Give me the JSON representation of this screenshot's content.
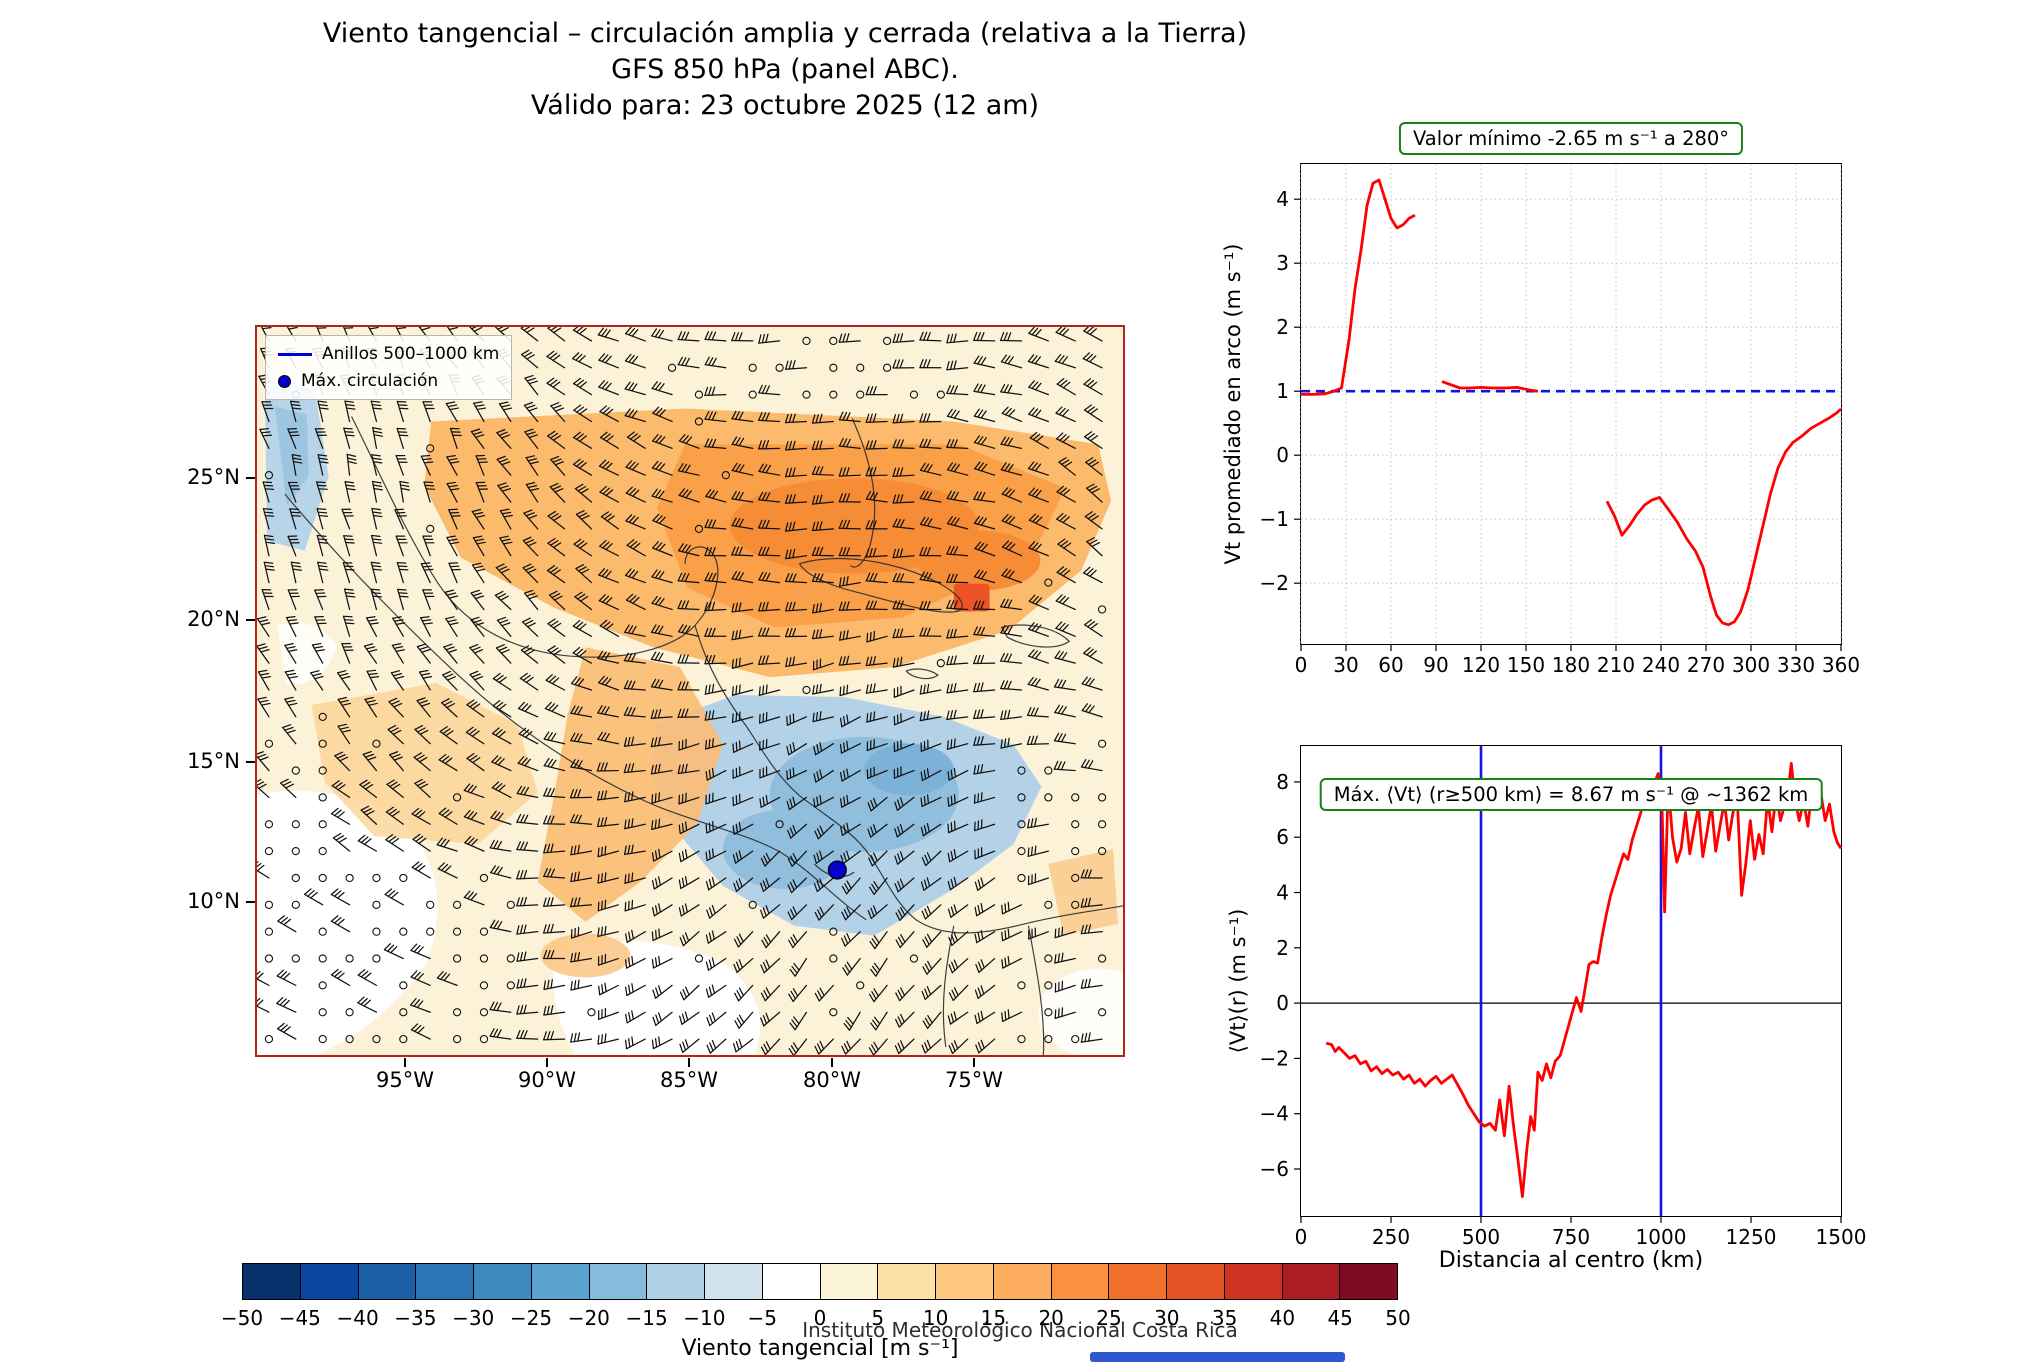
{
  "title": {
    "line1": "Viento tangencial – circulación amplia y cerrada (relativa a la Tierra)",
    "line2": "GFS 850 hPa (panel ABC).",
    "line3": "Válido para: 23 octubre 2025 (12 am)"
  },
  "footer": "Instituto Meteorológico Nacional Costa Rica",
  "map": {
    "legend": {
      "rings": "Anillos 500–1000 km",
      "max": "Máx. circulación"
    },
    "lat_ticks": [
      "25°N",
      "20°N",
      "15°N",
      "10°N"
    ],
    "lon_ticks": [
      "95°W",
      "90°W",
      "85°W",
      "80°W",
      "75°W"
    ],
    "border_color": "#b1251d",
    "max_marker_color": "#0202c8"
  },
  "colorbar": {
    "label": "Viento tangencial [m s⁻¹]",
    "ticks": [
      -50,
      -45,
      -40,
      -35,
      -30,
      -25,
      -20,
      -15,
      -10,
      -5,
      0,
      5,
      10,
      15,
      20,
      25,
      30,
      35,
      40,
      45,
      50
    ],
    "colors": [
      "#08306b",
      "#08479d",
      "#1a5fa8",
      "#2b74b6",
      "#3d8ac0",
      "#5ba3cf",
      "#85bcdb",
      "#aed1e7",
      "#d3e4f1",
      "#ffffff",
      "#fdf5d8",
      "#fddfa8",
      "#fdc780",
      "#fdad5e",
      "#fb903f",
      "#f2702b",
      "#e35222",
      "#cf3422",
      "#ad1c23",
      "#7f0c24"
    ]
  },
  "chart_data": [
    {
      "type": "line",
      "title": "Valor mínimo -2.65 m s⁻¹ a 280°",
      "ylabel": "Vt promediado en arco (m s⁻¹)",
      "xlabel": "",
      "xlim": [
        0,
        360
      ],
      "ylim": [
        -2.95,
        4.55
      ],
      "xticks": [
        0,
        30,
        60,
        90,
        120,
        150,
        180,
        210,
        240,
        270,
        300,
        330,
        360
      ],
      "yticks": [
        -2,
        -1,
        0,
        1,
        2,
        3,
        4
      ],
      "grid": true,
      "refline": 1.0,
      "refline_color": "#1414e0",
      "series": [
        {
          "name": "Vt promediado en arco",
          "color": "#ff0000",
          "segments": [
            [
              [
                0,
                0.95
              ],
              [
                8,
                0.95
              ],
              [
                16,
                0.96
              ],
              [
                22,
                1.0
              ],
              [
                27,
                1.05
              ],
              [
                32,
                1.8
              ],
              [
                36,
                2.6
              ],
              [
                40,
                3.2
              ],
              [
                44,
                3.9
              ],
              [
                48,
                4.25
              ],
              [
                52,
                4.3
              ],
              [
                56,
                4.0
              ],
              [
                60,
                3.7
              ],
              [
                64,
                3.55
              ],
              [
                68,
                3.6
              ],
              [
                72,
                3.7
              ],
              [
                76,
                3.75
              ]
            ],
            [
              [
                94,
                1.15
              ],
              [
                100,
                1.1
              ],
              [
                106,
                1.05
              ],
              [
                112,
                1.05
              ],
              [
                120,
                1.06
              ],
              [
                128,
                1.05
              ],
              [
                136,
                1.05
              ],
              [
                144,
                1.06
              ],
              [
                152,
                1.02
              ],
              [
                158,
                1.0
              ]
            ],
            [
              [
                204,
                -0.72
              ],
              [
                209,
                -0.95
              ],
              [
                214,
                -1.25
              ],
              [
                219,
                -1.1
              ],
              [
                224,
                -0.92
              ],
              [
                229,
                -0.78
              ],
              [
                234,
                -0.7
              ],
              [
                239,
                -0.66
              ],
              [
                245,
                -0.85
              ],
              [
                251,
                -1.05
              ],
              [
                257,
                -1.3
              ],
              [
                263,
                -1.5
              ],
              [
                268,
                -1.75
              ],
              [
                273,
                -2.2
              ],
              [
                277,
                -2.5
              ],
              [
                281,
                -2.62
              ],
              [
                285,
                -2.65
              ],
              [
                289,
                -2.6
              ],
              [
                293,
                -2.45
              ],
              [
                298,
                -2.1
              ],
              [
                303,
                -1.6
              ],
              [
                308,
                -1.1
              ],
              [
                313,
                -0.6
              ],
              [
                318,
                -0.2
              ],
              [
                323,
                0.05
              ],
              [
                328,
                0.2
              ],
              [
                334,
                0.3
              ],
              [
                340,
                0.42
              ],
              [
                346,
                0.5
              ],
              [
                352,
                0.58
              ],
              [
                357,
                0.66
              ],
              [
                360,
                0.72
              ]
            ]
          ]
        }
      ]
    },
    {
      "type": "line",
      "title": "Máx. ⟨Vt⟩ (r≥500 km) = 8.67 m s⁻¹ @ ~1362 km",
      "ylabel": "⟨Vt⟩(r) (m s⁻¹)",
      "xlabel": "Distancia al centro (km)",
      "xlim": [
        0,
        1500
      ],
      "ylim": [
        -7.7,
        9.3
      ],
      "xticks": [
        0,
        250,
        500,
        750,
        1000,
        1250,
        1500
      ],
      "yticks": [
        -6,
        -4,
        -2,
        0,
        2,
        4,
        6,
        8
      ],
      "grid": false,
      "hline": 0,
      "vlines": [
        500,
        1000
      ],
      "vline_color": "#1414e0",
      "max_value": 8.67,
      "max_at_km": 1362,
      "series": [
        {
          "name": "⟨Vt⟩(r)",
          "color": "#ff0000",
          "segments": [
            [
              [
                70,
                -1.45
              ],
              [
                85,
                -1.5
              ],
              [
                95,
                -1.75
              ],
              [
                105,
                -1.6
              ],
              [
                120,
                -1.8
              ],
              [
                135,
                -2.0
              ],
              [
                150,
                -1.9
              ],
              [
                165,
                -2.2
              ],
              [
                180,
                -2.1
              ],
              [
                195,
                -2.45
              ],
              [
                210,
                -2.3
              ],
              [
                225,
                -2.55
              ],
              [
                240,
                -2.4
              ],
              [
                255,
                -2.6
              ],
              [
                270,
                -2.5
              ],
              [
                285,
                -2.75
              ],
              [
                300,
                -2.6
              ],
              [
                315,
                -2.9
              ],
              [
                330,
                -2.75
              ],
              [
                345,
                -3.0
              ],
              [
                360,
                -2.8
              ],
              [
                375,
                -2.65
              ],
              [
                390,
                -2.9
              ],
              [
                405,
                -2.75
              ],
              [
                420,
                -2.6
              ],
              [
                435,
                -2.95
              ],
              [
                450,
                -3.3
              ],
              [
                465,
                -3.7
              ],
              [
                480,
                -4.0
              ],
              [
                495,
                -4.3
              ],
              [
                510,
                -4.45
              ],
              [
                525,
                -4.35
              ],
              [
                540,
                -4.6
              ],
              [
                552,
                -3.5
              ],
              [
                565,
                -4.8
              ],
              [
                578,
                -3.0
              ],
              [
                590,
                -4.4
              ],
              [
                602,
                -5.6
              ],
              [
                615,
                -7.0
              ],
              [
                628,
                -5.2
              ],
              [
                638,
                -4.1
              ],
              [
                648,
                -4.6
              ],
              [
                658,
                -2.5
              ],
              [
                670,
                -2.8
              ],
              [
                682,
                -2.2
              ],
              [
                694,
                -2.7
              ],
              [
                706,
                -2.1
              ],
              [
                720,
                -1.9
              ],
              [
                735,
                -1.2
              ],
              [
                750,
                -0.5
              ],
              [
                765,
                0.2
              ],
              [
                778,
                -0.3
              ],
              [
                790,
                0.6
              ],
              [
                800,
                1.4
              ],
              [
                812,
                1.5
              ],
              [
                824,
                1.45
              ],
              [
                836,
                2.4
              ],
              [
                848,
                3.2
              ],
              [
                860,
                3.9
              ],
              [
                872,
                4.4
              ],
              [
                884,
                4.9
              ],
              [
                896,
                5.4
              ],
              [
                908,
                5.2
              ],
              [
                920,
                5.9
              ],
              [
                932,
                6.4
              ],
              [
                944,
                6.9
              ],
              [
                956,
                7.6
              ],
              [
                968,
                7.3
              ],
              [
                980,
                7.9
              ],
              [
                992,
                8.3
              ],
              [
                1002,
                7.6
              ],
              [
                1010,
                3.3
              ],
              [
                1020,
                7.9
              ],
              [
                1032,
                6.0
              ],
              [
                1044,
                5.1
              ],
              [
                1056,
                5.6
              ],
              [
                1068,
                6.9
              ],
              [
                1080,
                5.4
              ],
              [
                1092,
                6.3
              ],
              [
                1104,
                7.1
              ],
              [
                1116,
                5.3
              ],
              [
                1128,
                6.2
              ],
              [
                1140,
                7.2
              ],
              [
                1152,
                5.5
              ],
              [
                1164,
                6.4
              ],
              [
                1176,
                7.3
              ],
              [
                1188,
                5.9
              ],
              [
                1200,
                6.9
              ],
              [
                1212,
                7.4
              ],
              [
                1224,
                3.9
              ],
              [
                1236,
                5.1
              ],
              [
                1248,
                6.6
              ],
              [
                1260,
                5.2
              ],
              [
                1272,
                6.1
              ],
              [
                1284,
                5.4
              ],
              [
                1296,
                7.4
              ],
              [
                1308,
                6.2
              ],
              [
                1320,
                7.6
              ],
              [
                1332,
                6.6
              ],
              [
                1344,
                7.2
              ],
              [
                1356,
                8.0
              ],
              [
                1362,
                8.67
              ],
              [
                1372,
                7.4
              ],
              [
                1384,
                6.6
              ],
              [
                1396,
                7.3
              ],
              [
                1408,
                6.4
              ],
              [
                1420,
                7.8
              ],
              [
                1432,
                7.0
              ],
              [
                1444,
                7.6
              ],
              [
                1456,
                6.6
              ],
              [
                1468,
                7.2
              ],
              [
                1480,
                6.2
              ],
              [
                1490,
                5.8
              ],
              [
                1500,
                5.6
              ]
            ]
          ]
        }
      ]
    }
  ]
}
